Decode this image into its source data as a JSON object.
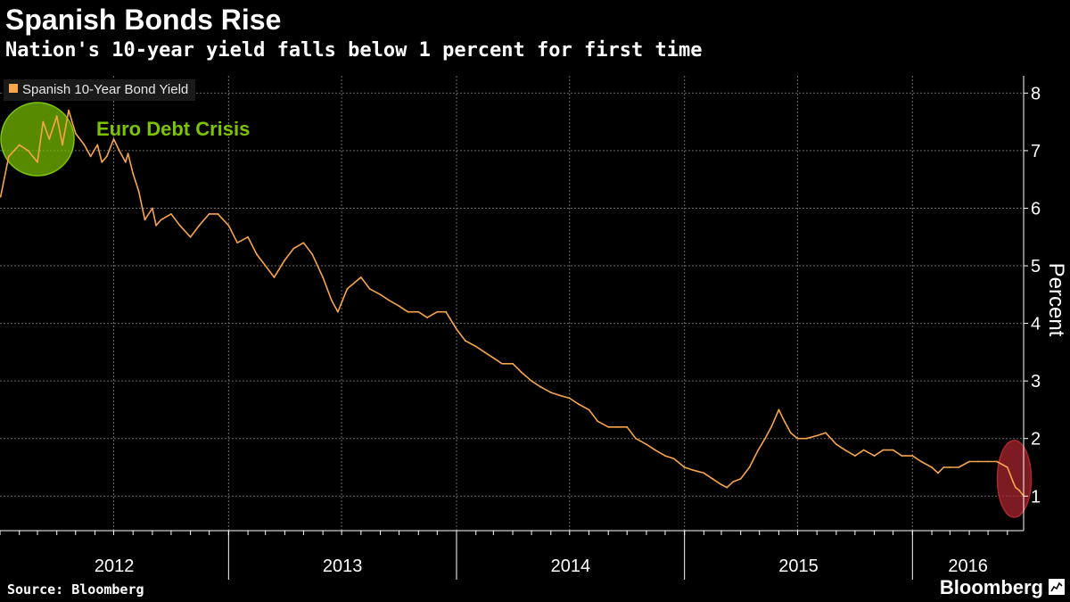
{
  "header": {
    "title": "Spanish Bonds Rise",
    "subtitle": "Nation's 10-year yield falls below 1 percent for first time"
  },
  "footer": {
    "source": "Source: Bloomberg",
    "brand": "Bloomberg"
  },
  "icons": {
    "brand": "chart-line-icon"
  },
  "colors": {
    "line": "#f7a54a",
    "highlight_green": "#7dc400",
    "highlight_red": "#b0262f",
    "annotation_green": "#7dc400"
  },
  "chart_data": {
    "type": "line",
    "title": "Spanish Bonds Rise",
    "subtitle": "Nation's 10-year yield falls below 1 percent for first time",
    "ylabel": "Percent",
    "xlabel": "",
    "xlim": [
      "2012-01-01",
      "2016-06-27"
    ],
    "ylim": [
      0.4,
      8.3
    ],
    "yticks": [
      1,
      2,
      3,
      4,
      5,
      6,
      7,
      8
    ],
    "xticks": [
      "2012",
      "2013",
      "2014",
      "2015",
      "2016"
    ],
    "grid": true,
    "legend_position": "top-left",
    "series": [
      {
        "name": "Spanish 10-Year Bond Yield",
        "x": [
          "2012-01-02",
          "2012-01-15",
          "2012-02-01",
          "2012-02-15",
          "2012-03-01",
          "2012-03-10",
          "2012-03-20",
          "2012-04-01",
          "2012-04-10",
          "2012-04-20",
          "2012-05-01",
          "2012-05-15",
          "2012-05-25",
          "2012-06-05",
          "2012-06-12",
          "2012-06-20",
          "2012-07-01",
          "2012-07-10",
          "2012-07-20",
          "2012-07-24",
          "2012-08-01",
          "2012-08-10",
          "2012-08-20",
          "2012-09-01",
          "2012-09-07",
          "2012-09-15",
          "2012-10-01",
          "2012-10-15",
          "2012-11-01",
          "2012-11-15",
          "2012-12-01",
          "2012-12-15",
          "2013-01-01",
          "2013-01-15",
          "2013-02-01",
          "2013-02-15",
          "2013-03-01",
          "2013-03-15",
          "2013-04-01",
          "2013-04-15",
          "2013-05-01",
          "2013-05-15",
          "2013-06-01",
          "2013-06-15",
          "2013-06-25",
          "2013-07-10",
          "2013-08-01",
          "2013-08-15",
          "2013-09-01",
          "2013-09-15",
          "2013-10-01",
          "2013-10-15",
          "2013-11-01",
          "2013-11-15",
          "2013-12-01",
          "2013-12-15",
          "2014-01-01",
          "2014-01-15",
          "2014-02-01",
          "2014-02-15",
          "2014-03-01",
          "2014-03-15",
          "2014-04-01",
          "2014-04-15",
          "2014-05-01",
          "2014-05-15",
          "2014-06-01",
          "2014-06-15",
          "2014-07-01",
          "2014-07-15",
          "2014-08-01",
          "2014-08-15",
          "2014-09-01",
          "2014-09-15",
          "2014-10-01",
          "2014-10-15",
          "2014-11-01",
          "2014-11-15",
          "2014-12-01",
          "2014-12-15",
          "2015-01-01",
          "2015-01-15",
          "2015-02-01",
          "2015-02-15",
          "2015-03-01",
          "2015-03-10",
          "2015-03-20",
          "2015-04-01",
          "2015-04-15",
          "2015-04-29",
          "2015-05-10",
          "2015-05-20",
          "2015-06-01",
          "2015-06-10",
          "2015-06-20",
          "2015-07-01",
          "2015-07-15",
          "2015-08-01",
          "2015-08-15",
          "2015-09-01",
          "2015-09-15",
          "2015-10-01",
          "2015-10-15",
          "2015-11-01",
          "2015-11-15",
          "2015-12-01",
          "2015-12-15",
          "2016-01-01",
          "2016-01-15",
          "2016-02-01",
          "2016-02-11",
          "2016-02-20",
          "2016-03-01",
          "2016-03-15",
          "2016-04-01",
          "2016-04-15",
          "2016-05-01",
          "2016-05-15",
          "2016-06-01",
          "2016-06-10",
          "2016-06-14",
          "2016-06-20",
          "2016-06-27"
        ],
        "y": [
          6.2,
          6.9,
          7.1,
          7.0,
          6.8,
          7.5,
          7.2,
          7.6,
          7.1,
          7.7,
          7.3,
          7.1,
          6.9,
          7.1,
          6.8,
          6.9,
          7.2,
          7.0,
          6.8,
          6.95,
          6.6,
          6.3,
          5.8,
          6.0,
          5.7,
          5.8,
          5.9,
          5.7,
          5.5,
          5.7,
          5.9,
          5.9,
          5.7,
          5.4,
          5.5,
          5.2,
          5.0,
          4.8,
          5.1,
          5.3,
          5.4,
          5.2,
          4.8,
          4.4,
          4.2,
          4.6,
          4.8,
          4.6,
          4.5,
          4.4,
          4.3,
          4.2,
          4.2,
          4.1,
          4.2,
          4.2,
          3.9,
          3.7,
          3.6,
          3.5,
          3.4,
          3.3,
          3.3,
          3.15,
          3.0,
          2.9,
          2.8,
          2.75,
          2.7,
          2.6,
          2.5,
          2.3,
          2.2,
          2.2,
          2.2,
          2.0,
          1.9,
          1.8,
          1.7,
          1.65,
          1.5,
          1.45,
          1.4,
          1.3,
          1.2,
          1.15,
          1.25,
          1.3,
          1.5,
          1.8,
          2.0,
          2.2,
          2.5,
          2.3,
          2.1,
          2.0,
          2.0,
          2.05,
          2.1,
          1.9,
          1.8,
          1.7,
          1.8,
          1.7,
          1.8,
          1.8,
          1.7,
          1.7,
          1.6,
          1.5,
          1.4,
          1.5,
          1.5,
          1.5,
          1.6,
          1.6,
          1.6,
          1.6,
          1.5,
          1.25,
          1.15,
          1.1,
          1.0
        ]
      }
    ],
    "annotations": [
      {
        "text": "Euro Debt Crisis",
        "x": "2012-04-01",
        "y": 7.2
      }
    ],
    "highlights": [
      {
        "name": "crisis",
        "center": [
          "2012-03-01",
          7.2
        ],
        "color": "green"
      },
      {
        "name": "recent-low",
        "center": [
          "2016-06-12",
          1.3
        ],
        "color": "red"
      }
    ]
  }
}
